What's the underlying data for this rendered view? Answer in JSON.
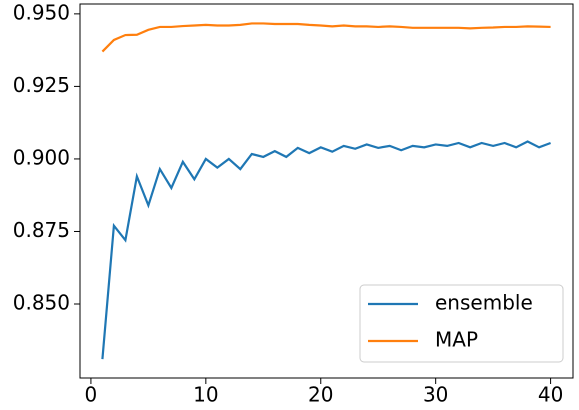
{
  "chart_data": {
    "type": "line",
    "x": [
      1,
      2,
      3,
      4,
      5,
      6,
      7,
      8,
      9,
      10,
      11,
      12,
      13,
      14,
      15,
      16,
      17,
      18,
      19,
      20,
      21,
      22,
      23,
      24,
      25,
      26,
      27,
      28,
      29,
      30,
      31,
      32,
      33,
      34,
      35,
      36,
      37,
      38,
      39,
      40
    ],
    "series": [
      {
        "name": "ensemble",
        "color": "#1f77b4",
        "values": [
          0.831,
          0.877,
          0.872,
          0.894,
          0.884,
          0.8965,
          0.89,
          0.899,
          0.893,
          0.9,
          0.897,
          0.9,
          0.8965,
          0.9017,
          0.9007,
          0.9027,
          0.9007,
          0.9038,
          0.902,
          0.904,
          0.9025,
          0.9045,
          0.9035,
          0.905,
          0.9038,
          0.9045,
          0.903,
          0.9045,
          0.904,
          0.905,
          0.9045,
          0.9055,
          0.904,
          0.9055,
          0.9045,
          0.9055,
          0.904,
          0.906,
          0.904,
          0.9055
        ]
      },
      {
        "name": "MAP",
        "color": "#ff7f0e",
        "values": [
          0.937,
          0.941,
          0.9427,
          0.9428,
          0.9445,
          0.9455,
          0.9455,
          0.9458,
          0.946,
          0.9462,
          0.946,
          0.946,
          0.9462,
          0.9467,
          0.9467,
          0.9465,
          0.9465,
          0.9465,
          0.9462,
          0.946,
          0.9457,
          0.946,
          0.9457,
          0.9457,
          0.9455,
          0.9457,
          0.9455,
          0.9452,
          0.9452,
          0.9452,
          0.9452,
          0.9452,
          0.945,
          0.9452,
          0.9453,
          0.9455,
          0.9455,
          0.9457,
          0.9456,
          0.9455
        ]
      }
    ],
    "xlim": [
      -0.95,
      41.95
    ],
    "ylim": [
      0.8245,
      0.9534
    ],
    "xticks": [
      0,
      10,
      20,
      30,
      40
    ],
    "yticks": [
      {
        "value": 0.85,
        "label": "0.850"
      },
      {
        "value": 0.875,
        "label": "0.875"
      },
      {
        "value": 0.9,
        "label": "0.900"
      },
      {
        "value": 0.925,
        "label": "0.925"
      },
      {
        "value": 0.95,
        "label": "0.950"
      }
    ],
    "legend": "lower right"
  }
}
